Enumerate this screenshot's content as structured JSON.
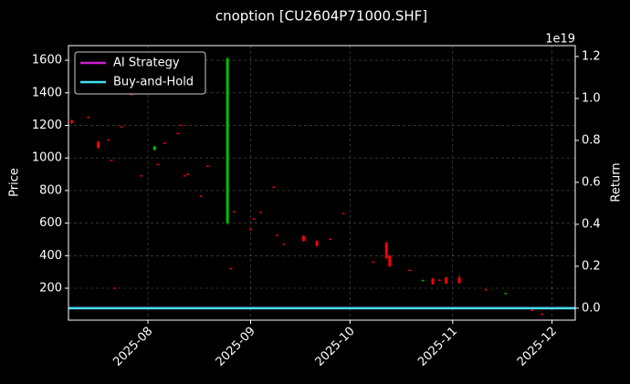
{
  "chart_data": {
    "type": "candlestick",
    "title": "cnoption [CU2604P71000.SHF]",
    "ylabel": "Price",
    "y2label": "Return",
    "y2_offset_label": "1e19",
    "x": [
      "2025-07-09",
      "2025-07-14",
      "2025-07-17",
      "2025-07-20",
      "2025-07-21",
      "2025-07-22",
      "2025-07-24",
      "2025-07-27",
      "2025-07-30",
      "2025-08-03",
      "2025-08-04",
      "2025-08-06",
      "2025-08-10",
      "2025-08-11",
      "2025-08-12",
      "2025-08-13",
      "2025-08-17",
      "2025-08-19",
      "2025-08-25",
      "2025-08-26",
      "2025-08-27",
      "2025-09-01",
      "2025-09-02",
      "2025-09-04",
      "2025-09-08",
      "2025-09-09",
      "2025-09-11",
      "2025-09-17",
      "2025-09-21",
      "2025-09-25",
      "2025-09-29",
      "2025-10-08",
      "2025-10-12",
      "2025-10-13",
      "2025-10-19",
      "2025-10-23",
      "2025-10-26",
      "2025-10-28",
      "2025-10-30",
      "2025-11-03",
      "2025-11-11",
      "2025-11-17",
      "2025-11-25",
      "2025-11-28"
    ],
    "open": [
      1230,
      1252,
      1100,
      1112,
      987,
      202,
      1192,
      1392,
      892,
      1050,
      962,
      1092,
      1152,
      1202,
      892,
      902,
      767,
      952,
      600,
      322,
      672,
      562,
      627,
      667,
      822,
      527,
      472,
      520,
      490,
      502,
      662,
      362,
      480,
      400,
      312,
      245,
      260,
      252,
      265,
      265,
      192,
      165,
      67,
      42
    ],
    "high": [
      1236,
      1256,
      1104,
      1116,
      990,
      205,
      1196,
      1396,
      896,
      1074,
      966,
      1096,
      1156,
      1206,
      896,
      906,
      771,
      956,
      1620,
      326,
      676,
      566,
      631,
      671,
      826,
      531,
      476,
      526,
      496,
      506,
      666,
      366,
      484,
      404,
      316,
      253,
      264,
      256,
      270,
      282,
      196,
      173,
      71,
      46
    ],
    "low": [
      1208,
      1246,
      1056,
      1106,
      981,
      196,
      1186,
      1386,
      886,
      1046,
      956,
      1086,
      1146,
      1196,
      886,
      896,
      761,
      946,
      590,
      316,
      666,
      556,
      621,
      661,
      816,
      521,
      466,
      486,
      456,
      496,
      656,
      356,
      380,
      330,
      306,
      242,
      222,
      246,
      226,
      228,
      186,
      162,
      61,
      36
    ],
    "close": [
      1215,
      1248,
      1062,
      1108,
      983,
      198,
      1188,
      1388,
      888,
      1070,
      958,
      1088,
      1148,
      1198,
      888,
      898,
      763,
      948,
      1610,
      318,
      668,
      558,
      623,
      663,
      818,
      523,
      468,
      490,
      460,
      498,
      658,
      358,
      385,
      335,
      308,
      250,
      225,
      248,
      230,
      232,
      188,
      170,
      63,
      38
    ],
    "up_color": "#00c000",
    "down_color": "#ff0000",
    "series": [
      {
        "name": "AI Strategy",
        "color": "#d020d0",
        "axis": "y2",
        "x": [
          "2025-07-08",
          "2025-12-08"
        ],
        "values": [
          0,
          0
        ]
      },
      {
        "name": "Buy-and-Hold",
        "color": "#40e0f0",
        "axis": "y2",
        "x": [
          "2025-07-08",
          "2025-12-08"
        ],
        "values": [
          0,
          0
        ]
      }
    ],
    "xlim": [
      "2025-07-08",
      "2025-12-08"
    ],
    "xticks": [
      {
        "value": "2025-08-01",
        "label": "2025-08"
      },
      {
        "value": "2025-09-01",
        "label": "2025-09"
      },
      {
        "value": "2025-10-01",
        "label": "2025-10"
      },
      {
        "value": "2025-11-01",
        "label": "2025-11"
      },
      {
        "value": "2025-12-01",
        "label": "2025-12"
      }
    ],
    "ylim": [
      4,
      1690
    ],
    "yticks": [
      200,
      400,
      600,
      800,
      1000,
      1200,
      1400,
      1600
    ],
    "y2lim": [
      -0.057,
      1.252
    ],
    "y2ticks": [
      {
        "value": 0,
        "label": "0.0"
      },
      0.2,
      0.4,
      0.6,
      0.8,
      {
        "value": 1,
        "label": "1.0"
      },
      1.2
    ],
    "grid": true,
    "legend": "upper left"
  }
}
